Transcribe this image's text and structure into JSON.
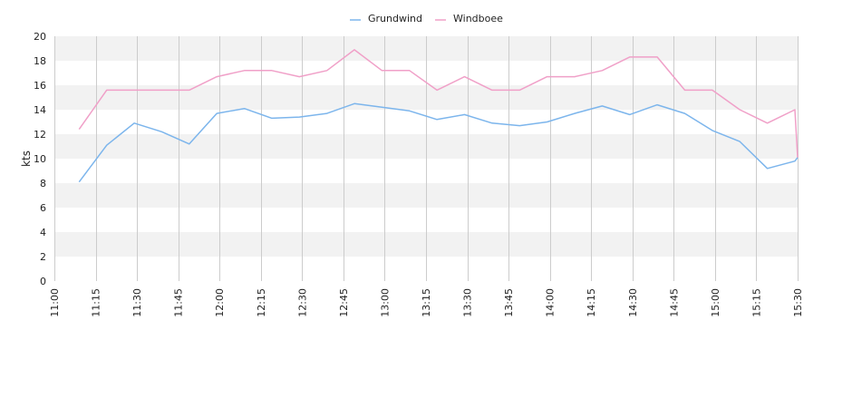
{
  "chart_data": {
    "type": "line",
    "ylabel": "kts",
    "ylim": [
      0,
      20
    ],
    "yticks": [
      0,
      2,
      4,
      6,
      8,
      10,
      12,
      14,
      16,
      18,
      20
    ],
    "xticks": [
      "11:00",
      "11:15",
      "11:30",
      "11:45",
      "12:00",
      "12:15",
      "12:30",
      "12:45",
      "13:00",
      "13:15",
      "13:30",
      "13:45",
      "14:00",
      "14:15",
      "14:30",
      "14:45",
      "15:00",
      "15:15",
      "15:30"
    ],
    "x_start": "11:00",
    "x_end": "15:30",
    "grid": "horizontal-bands-and-vertical-lines",
    "legend_position": "top-center",
    "band_color": "#f2f2f2",
    "x": [
      "11:09",
      "11:19",
      "11:29",
      "11:39",
      "11:49",
      "11:59",
      "12:09",
      "12:19",
      "12:29",
      "12:39",
      "12:49",
      "12:59",
      "13:09",
      "13:19",
      "13:29",
      "13:39",
      "13:49",
      "13:59",
      "14:09",
      "14:19",
      "14:29",
      "14:39",
      "14:49",
      "14:59",
      "15:09",
      "15:19",
      "15:29",
      "15:30"
    ],
    "series": [
      {
        "name": "Grundwind",
        "color": "#7cb5ec",
        "values": [
          8.1,
          11.1,
          12.9,
          12.2,
          11.2,
          13.7,
          14.1,
          13.3,
          13.4,
          13.7,
          14.5,
          14.2,
          13.9,
          13.2,
          13.6,
          12.9,
          12.7,
          13.0,
          13.7,
          14.3,
          13.6,
          14.4,
          13.7,
          12.3,
          11.4,
          9.2,
          9.8,
          10.1
        ]
      },
      {
        "name": "Windboee",
        "color": "#f0a0c8",
        "values": [
          12.4,
          15.6,
          15.6,
          15.6,
          15.6,
          16.7,
          17.2,
          17.2,
          16.7,
          17.2,
          18.9,
          17.2,
          17.2,
          15.6,
          16.7,
          15.6,
          15.6,
          16.7,
          16.7,
          17.2,
          18.3,
          18.3,
          15.6,
          15.6,
          14.0,
          12.9,
          14.0,
          10.1
        ]
      }
    ]
  }
}
